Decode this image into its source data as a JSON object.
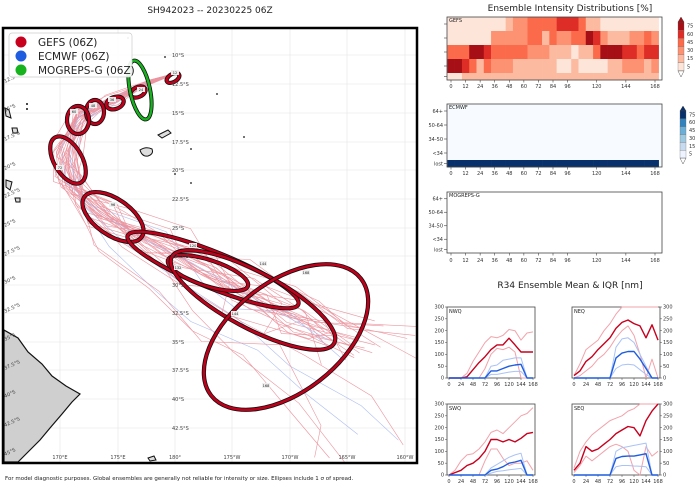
{
  "header": {
    "title": "SH942023 -- 20230225 06Z"
  },
  "footer": {
    "note": "For model diagnostic purposes. Global ensembles are generally not reliable for intensity or size. Ellipses include 1 σ of spread."
  },
  "map": {
    "legend": [
      {
        "label": "GEFS (06Z)",
        "color": "#c8001e"
      },
      {
        "label": "ECMWF (06Z)",
        "color": "#1f5de0"
      },
      {
        "label": "MOGREPS-G (06Z)",
        "color": "#17b31e"
      }
    ],
    "lat_labels_inner": [
      "10°S",
      "12.5°S",
      "15°S",
      "17.5°S",
      "20°S",
      "22.5°S",
      "25°S",
      "27.5°S",
      "30°S",
      "32.5°S",
      "35°S",
      "37.5°S",
      "40°S",
      "42.5°S"
    ],
    "lat_labels_left": [
      "12.5°S",
      "15°S",
      "17.5°S",
      "20°S",
      "22.5°S",
      "25°S",
      "27.5°S",
      "30°S",
      "32.5°S",
      "35°S",
      "37.5°S",
      "40°S",
      "42.5°S",
      "45°S"
    ],
    "lon_labels": [
      "170°E",
      "175°E",
      "180°",
      "175°W",
      "170°W",
      "165°W",
      "160°W"
    ],
    "ellipse_labels": [
      "12",
      "24",
      "36",
      "48",
      "60",
      "72",
      "96",
      "120",
      "132",
      "144",
      "144",
      "168",
      "168"
    ],
    "track_color": "#e8838f",
    "ellipse_fill": "#c0001a"
  },
  "intensity": {
    "title": "Ensemble Intensity Distributions [%]",
    "colorbar_ticks": [
      "75",
      "60",
      "45",
      "30",
      "15",
      "5"
    ],
    "reds": [
      "#fee5d9",
      "#fcbba1",
      "#fc9272",
      "#fb6a4a",
      "#de2d26",
      "#a50f15"
    ],
    "blues": [
      "#eff3ff",
      "#c6dbef",
      "#9ecae1",
      "#6baed6",
      "#3182bd",
      "#08306b"
    ]
  },
  "r34": {
    "title": "R34 Ensemble Mean & IQR [nm]"
  },
  "chart_data": [
    {
      "type": "heatmap",
      "name": "GEFS",
      "x": [
        0,
        6,
        12,
        18,
        24,
        30,
        36,
        42,
        48,
        54,
        60,
        66,
        72,
        78,
        84,
        90,
        96,
        102,
        108,
        114,
        120,
        126,
        132,
        138,
        144,
        150,
        156,
        162,
        168
      ],
      "x_ticks": [
        "0",
        "12",
        "24",
        "36",
        "48",
        "60",
        "72",
        "84",
        "96",
        "120",
        "144",
        "168"
      ],
      "y_categories": [
        "64+",
        "50-64",
        "34-50",
        "<34",
        "lost"
      ],
      "values": [
        [
          5,
          5,
          5,
          5,
          5,
          5,
          5,
          5,
          15,
          30,
          30,
          45,
          45,
          45,
          45,
          60,
          60,
          60,
          45,
          15,
          15,
          5,
          5,
          5,
          5,
          5,
          5,
          5,
          5
        ],
        [
          5,
          5,
          5,
          5,
          5,
          5,
          30,
          30,
          30,
          30,
          30,
          45,
          45,
          20,
          45,
          30,
          30,
          45,
          45,
          75,
          60,
          30,
          15,
          15,
          15,
          30,
          30,
          45,
          30
        ],
        [
          45,
          45,
          45,
          75,
          75,
          60,
          45,
          45,
          45,
          45,
          45,
          30,
          30,
          30,
          15,
          15,
          15,
          5,
          15,
          15,
          45,
          75,
          75,
          75,
          60,
          60,
          45,
          60,
          60
        ],
        [
          75,
          75,
          60,
          45,
          15,
          45,
          30,
          30,
          30,
          15,
          15,
          15,
          15,
          15,
          15,
          5,
          5,
          15,
          5,
          5,
          5,
          5,
          15,
          15,
          30,
          30,
          30,
          15,
          30
        ],
        [
          5,
          5,
          15,
          15,
          15,
          15,
          15,
          15,
          15,
          15,
          15,
          15,
          15,
          15,
          15,
          15,
          15,
          15,
          15,
          15,
          15,
          15,
          15,
          15,
          15,
          15,
          15,
          15,
          15
        ]
      ],
      "colorbar": "Reds",
      "units": "%"
    },
    {
      "type": "heatmap",
      "name": "ECMWF",
      "x": [
        0,
        6,
        12,
        18,
        24,
        30,
        36,
        42,
        48,
        54,
        60,
        66,
        72,
        78,
        84,
        90,
        96,
        102,
        108,
        114,
        120,
        126,
        132,
        138,
        144,
        150,
        156,
        162,
        168
      ],
      "x_ticks": [
        "0",
        "12",
        "24",
        "36",
        "48",
        "60",
        "72",
        "84",
        "96",
        "120",
        "144",
        "168"
      ],
      "y_categories": [
        "64+",
        "50-64",
        "34-50",
        "<34",
        "lost"
      ],
      "values": [
        [
          0,
          0,
          0,
          0,
          0,
          0,
          0,
          0,
          0,
          0,
          0,
          0,
          0,
          0,
          0,
          0,
          0,
          0,
          0,
          0,
          0,
          0,
          0,
          0,
          0,
          0,
          0,
          0,
          0
        ],
        [
          0,
          0,
          0,
          0,
          0,
          0,
          0,
          0,
          0,
          0,
          0,
          0,
          0,
          0,
          0,
          0,
          0,
          0,
          0,
          0,
          0,
          0,
          0,
          0,
          0,
          0,
          0,
          0,
          0
        ],
        [
          0,
          0,
          0,
          0,
          0,
          0,
          0,
          0,
          0,
          0,
          0,
          0,
          0,
          0,
          0,
          0,
          0,
          0,
          0,
          0,
          0,
          0,
          0,
          0,
          0,
          0,
          0,
          0,
          0
        ],
        [
          0,
          0,
          0,
          0,
          0,
          0,
          0,
          0,
          0,
          0,
          0,
          0,
          0,
          0,
          0,
          0,
          0,
          0,
          0,
          0,
          0,
          0,
          0,
          0,
          0,
          0,
          0,
          0,
          0
        ],
        [
          100,
          100,
          100,
          100,
          100,
          100,
          100,
          100,
          100,
          100,
          100,
          100,
          100,
          100,
          100,
          100,
          100,
          100,
          100,
          100,
          100,
          100,
          100,
          100,
          100,
          100,
          100,
          100,
          100
        ]
      ],
      "colorbar": "Blues",
      "units": "%"
    },
    {
      "type": "heatmap",
      "name": "MOGREPS-G",
      "x_ticks": [
        "0",
        "12",
        "24",
        "36",
        "48",
        "60",
        "72",
        "84",
        "96",
        "120",
        "144",
        "168"
      ],
      "y_categories": [
        "64+",
        "50-64",
        "34-50",
        "<34",
        "lost"
      ],
      "values": []
    },
    {
      "type": "line",
      "quadrants": [
        "NWQ",
        "NEQ",
        "SWQ",
        "SEQ"
      ],
      "x": [
        0,
        12,
        24,
        36,
        48,
        60,
        72,
        84,
        96,
        108,
        120,
        132,
        144,
        156,
        168
      ],
      "x_ticks": [
        "0",
        "24",
        "48",
        "72",
        "96",
        "120",
        "144",
        "168"
      ],
      "y_ticks": [
        "0",
        "50",
        "100",
        "150",
        "200",
        "250",
        "300"
      ],
      "ylim": [
        0,
        300
      ],
      "xlim": [
        0,
        168
      ],
      "series": {
        "NWQ": {
          "gefs_mean": [
            0,
            0,
            0,
            5,
            35,
            65,
            90,
            120,
            140,
            140,
            168,
            140,
            110,
            110,
            110
          ],
          "gefs_q75": [
            0,
            0,
            0,
            20,
            70,
            110,
            150,
            175,
            170,
            180,
            205,
            200,
            160,
            190,
            195
          ],
          "gefs_q25": [
            0,
            0,
            0,
            0,
            0,
            0,
            40,
            100,
            125,
            120,
            130,
            110,
            0,
            0,
            0
          ],
          "ecmwf_mean": [
            0,
            0,
            0,
            0,
            0,
            0,
            0,
            30,
            30,
            40,
            50,
            55,
            58,
            0,
            0
          ],
          "ecmwf_q75": [
            0,
            0,
            0,
            0,
            0,
            0,
            0,
            50,
            55,
            75,
            80,
            85,
            85,
            0,
            0
          ],
          "ecmwf_q25": [
            0,
            0,
            0,
            0,
            0,
            0,
            0,
            15,
            15,
            20,
            25,
            28,
            28,
            0,
            0
          ]
        },
        "NEQ": {
          "gefs_mean": [
            10,
            30,
            70,
            90,
            120,
            145,
            170,
            210,
            235,
            245,
            230,
            220,
            170,
            225,
            160
          ],
          "gefs_q75": [
            10,
            60,
            120,
            140,
            160,
            200,
            230,
            270,
            300,
            300,
            300,
            300,
            300,
            300,
            300
          ],
          "gefs_q25": [
            0,
            10,
            30,
            50,
            80,
            100,
            130,
            170,
            200,
            220,
            180,
            100,
            0,
            80,
            0
          ],
          "ecmwf_mean": [
            0,
            0,
            0,
            0,
            0,
            0,
            0,
            85,
            105,
            112,
            112,
            80,
            40,
            0,
            0
          ],
          "ecmwf_q75": [
            0,
            0,
            0,
            0,
            0,
            0,
            0,
            130,
            165,
            170,
            150,
            100,
            50,
            0,
            0
          ],
          "ecmwf_q25": [
            0,
            0,
            0,
            0,
            0,
            0,
            0,
            40,
            55,
            58,
            55,
            35,
            15,
            0,
            0
          ]
        },
        "SWQ": {
          "gefs_mean": [
            0,
            10,
            20,
            40,
            50,
            70,
            100,
            150,
            150,
            140,
            150,
            140,
            155,
            175,
            180
          ],
          "gefs_q75": [
            0,
            20,
            60,
            85,
            90,
            110,
            140,
            180,
            190,
            175,
            200,
            225,
            250,
            260,
            285
          ],
          "gefs_q25": [
            0,
            0,
            0,
            0,
            0,
            0,
            60,
            110,
            110,
            70,
            40,
            50,
            50,
            60,
            20
          ],
          "ecmwf_mean": [
            0,
            0,
            0,
            0,
            0,
            0,
            0,
            20,
            25,
            35,
            50,
            55,
            62,
            0,
            0
          ],
          "ecmwf_q75": [
            0,
            0,
            0,
            0,
            0,
            0,
            0,
            30,
            45,
            60,
            75,
            85,
            92,
            0,
            0
          ],
          "ecmwf_q25": [
            0,
            0,
            0,
            0,
            0,
            0,
            0,
            8,
            15,
            18,
            22,
            25,
            28,
            0,
            0
          ]
        },
        "SEQ": {
          "gefs_mean": [
            20,
            50,
            120,
            100,
            110,
            130,
            150,
            175,
            190,
            205,
            200,
            165,
            230,
            270,
            300
          ],
          "gefs_q75": [
            30,
            100,
            140,
            170,
            190,
            210,
            230,
            240,
            250,
            270,
            280,
            300,
            300,
            300,
            300
          ],
          "gefs_q25": [
            10,
            40,
            80,
            60,
            80,
            100,
            120,
            130,
            120,
            100,
            20,
            0,
            120,
            80,
            100
          ],
          "ecmwf_mean": [
            0,
            0,
            0,
            0,
            0,
            0,
            0,
            70,
            78,
            80,
            80,
            85,
            90,
            0,
            0
          ],
          "ecmwf_q75": [
            0,
            0,
            0,
            0,
            0,
            0,
            0,
            100,
            115,
            120,
            125,
            130,
            135,
            0,
            0
          ],
          "ecmwf_q25": [
            0,
            0,
            0,
            0,
            0,
            0,
            0,
            35,
            40,
            40,
            38,
            37,
            35,
            0,
            0
          ]
        }
      },
      "colors": {
        "gefs_mean": "#c8001e",
        "gefs_iqr": "#f2a3ab",
        "ecmwf_mean": "#1f5de0",
        "ecmwf_iqr": "#a9c2f7"
      }
    }
  ]
}
